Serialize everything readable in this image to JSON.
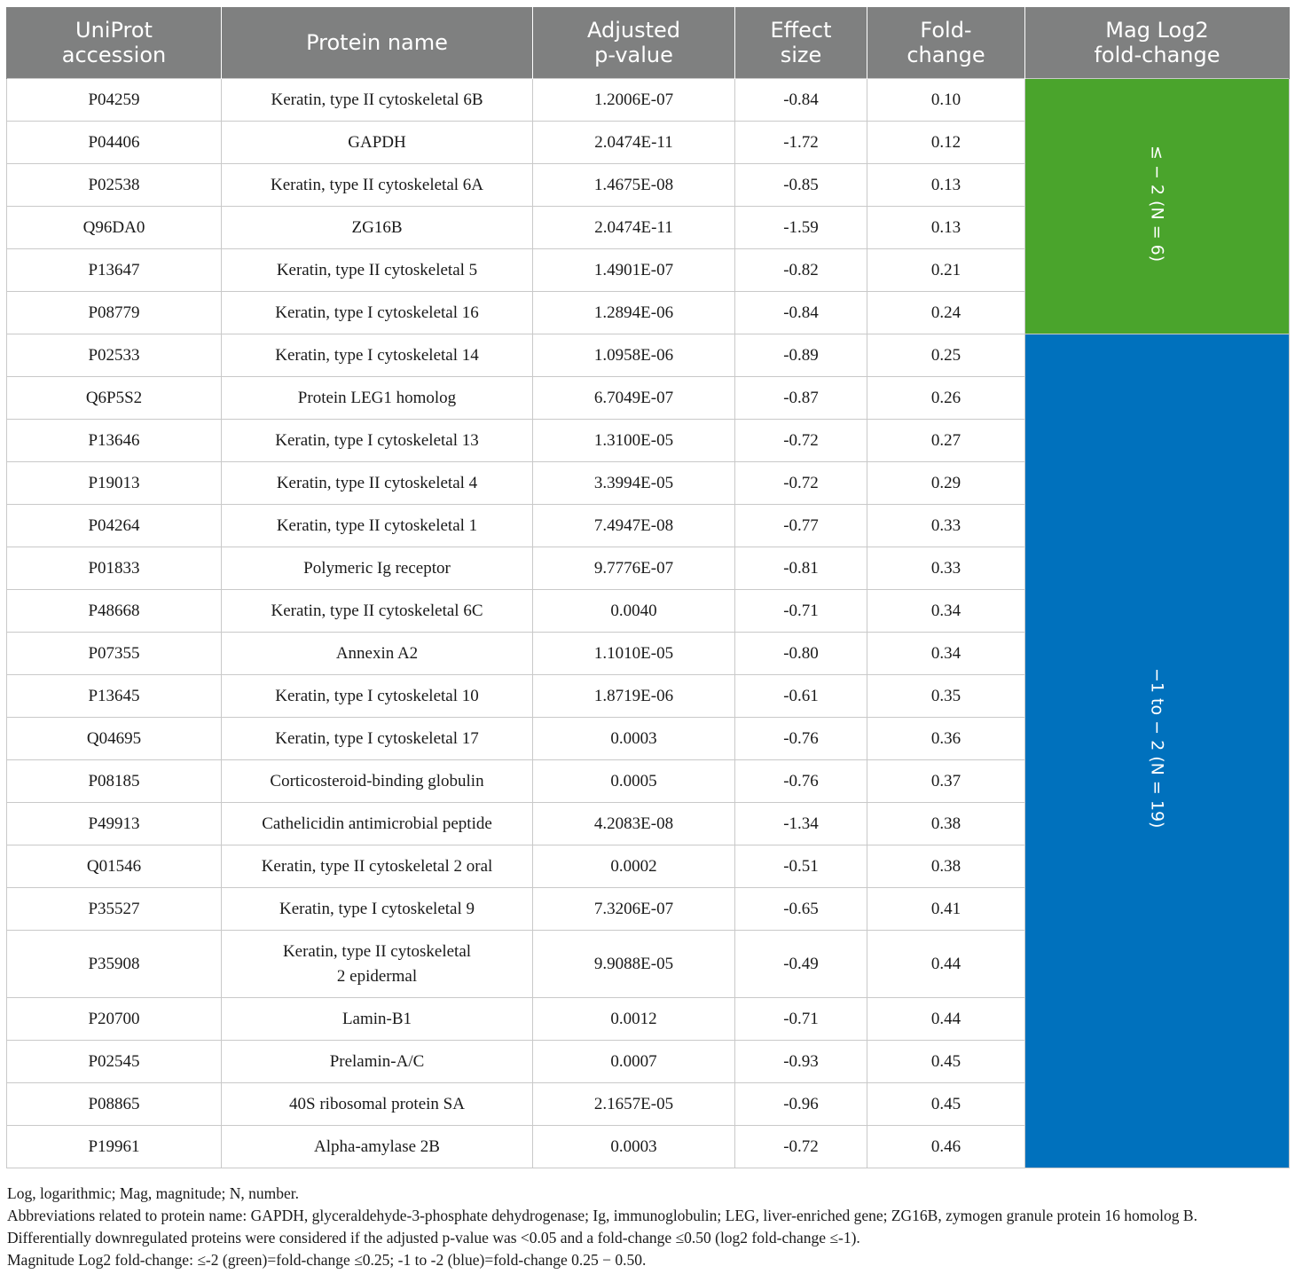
{
  "columns": [
    "UniProt accession",
    "Protein name",
    "Adjusted p-value",
    "Effect size",
    "Fold-change",
    "Mag Log2 fold-change"
  ],
  "rows": [
    {
      "acc": "P04259",
      "name": "Keratin, type II cytoskeletal 6B",
      "p": "1.2006E-07",
      "effect": "-0.84",
      "fc": "0.10"
    },
    {
      "acc": "P04406",
      "name": "GAPDH",
      "p": "2.0474E-11",
      "effect": "-1.72",
      "fc": "0.12"
    },
    {
      "acc": "P02538",
      "name": "Keratin, type II cytoskeletal 6A",
      "p": "1.4675E-08",
      "effect": "-0.85",
      "fc": "0.13"
    },
    {
      "acc": "Q96DA0",
      "name": "ZG16B",
      "p": "2.0474E-11",
      "effect": "-1.59",
      "fc": "0.13"
    },
    {
      "acc": "P13647",
      "name": "Keratin, type II cytoskeletal 5",
      "p": "1.4901E-07",
      "effect": "-0.82",
      "fc": "0.21"
    },
    {
      "acc": "P08779",
      "name": "Keratin, type I cytoskeletal 16",
      "p": "1.2894E-06",
      "effect": "-0.84",
      "fc": "0.24"
    },
    {
      "acc": "P02533",
      "name": "Keratin, type I cytoskeletal 14",
      "p": "1.0958E-06",
      "effect": "-0.89",
      "fc": "0.25"
    },
    {
      "acc": "Q6P5S2",
      "name": "Protein LEG1 homolog",
      "p": "6.7049E-07",
      "effect": "-0.87",
      "fc": "0.26"
    },
    {
      "acc": "P13646",
      "name": "Keratin, type I cytoskeletal 13",
      "p": "1.3100E-05",
      "effect": "-0.72",
      "fc": "0.27"
    },
    {
      "acc": "P19013",
      "name": "Keratin, type II cytoskeletal 4",
      "p": "3.3994E-05",
      "effect": "-0.72",
      "fc": "0.29"
    },
    {
      "acc": "P04264",
      "name": "Keratin, type II cytoskeletal 1",
      "p": "7.4947E-08",
      "effect": "-0.77",
      "fc": "0.33"
    },
    {
      "acc": "P01833",
      "name": "Polymeric Ig receptor",
      "p": "9.7776E-07",
      "effect": "-0.81",
      "fc": "0.33"
    },
    {
      "acc": "P48668",
      "name": "Keratin, type II cytoskeletal 6C",
      "p": "0.0040",
      "effect": "-0.71",
      "fc": "0.34"
    },
    {
      "acc": "P07355",
      "name": "Annexin A2",
      "p": "1.1010E-05",
      "effect": "-0.80",
      "fc": "0.34"
    },
    {
      "acc": "P13645",
      "name": "Keratin, type I cytoskeletal 10",
      "p": "1.8719E-06",
      "effect": "-0.61",
      "fc": "0.35"
    },
    {
      "acc": "Q04695",
      "name": "Keratin, type I cytoskeletal 17",
      "p": "0.0003",
      "effect": "-0.76",
      "fc": "0.36"
    },
    {
      "acc": "P08185",
      "name": "Corticosteroid-binding globulin",
      "p": "0.0005",
      "effect": "-0.76",
      "fc": "0.37"
    },
    {
      "acc": "P49913",
      "name": "Cathelicidin antimicrobial peptide",
      "p": "4.2083E-08",
      "effect": "-1.34",
      "fc": "0.38"
    },
    {
      "acc": "Q01546",
      "name": "Keratin, type II cytoskeletal 2 oral",
      "p": "0.0002",
      "effect": "-0.51",
      "fc": "0.38"
    },
    {
      "acc": "P35527",
      "name": "Keratin, type I cytoskeletal 9",
      "p": "7.3206E-07",
      "effect": "-0.65",
      "fc": "0.41"
    },
    {
      "acc": "P35908",
      "name": "Keratin, type II cytoskeletal\n2 epidermal",
      "p": "9.9088E-05",
      "effect": "-0.49",
      "fc": "0.44"
    },
    {
      "acc": "P20700",
      "name": "Lamin-B1",
      "p": "0.0012",
      "effect": "-0.71",
      "fc": "0.44"
    },
    {
      "acc": "P02545",
      "name": "Prelamin-A/C",
      "p": "0.0007",
      "effect": "-0.93",
      "fc": "0.45"
    },
    {
      "acc": "P08865",
      "name": "40S ribosomal protein SA",
      "p": "2.1657E-05",
      "effect": "-0.96",
      "fc": "0.45"
    },
    {
      "acc": "P19961",
      "name": "Alpha-amylase 2B",
      "p": "0.0003",
      "effect": "-0.72",
      "fc": "0.46"
    }
  ],
  "groups": [
    {
      "label": "≤ − 2 (N = 6)",
      "rows": 6,
      "color": "#4aa42c"
    },
    {
      "label": "−1 to − 2 (N = 19)",
      "rows": 19,
      "color": "#0071bd"
    }
  ],
  "footnotes": [
    "Log, logarithmic; Mag, magnitude; N, number.",
    "Abbreviations related to protein name: GAPDH, glyceraldehyde-3-phosphate dehydrogenase; Ig, immunoglobulin; LEG, liver-enriched gene; ZG16B, zymogen granule protein 16 homolog B.",
    "Differentially downregulated proteins were considered if the adjusted p-value was <0.05 and a fold-change ≤0.50 (log2 fold-change ≤-1).",
    "Magnitude Log2 fold-change: ≤-2 (green)=fold-change ≤0.25; -1 to -2 (blue)=fold-change 0.25 − 0.50."
  ],
  "colors": {
    "header": "#7f8080",
    "green": "#4aa42c",
    "blue": "#0071bd"
  }
}
